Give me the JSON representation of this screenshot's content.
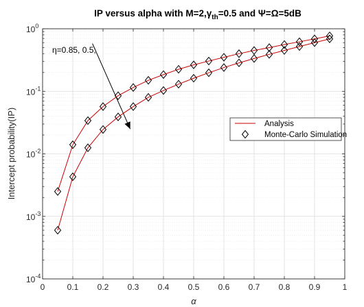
{
  "chart_data": {
    "type": "line",
    "title": {
      "prefix": "IP versus alpha with M=2,",
      "gamma": "γ",
      "gamma_sub": "th",
      "suffix": "=0.5 and Ψ=Ω=5dB"
    },
    "xlabel": "α",
    "ylabel": "Intercept probability(IP)",
    "xlim": [
      0,
      1
    ],
    "ylim": [
      0.0001,
      1
    ],
    "yscale": "log",
    "grid": true,
    "x_ticks": [
      "0",
      "0.1",
      "0.2",
      "0.3",
      "0.4",
      "0.5",
      "0.6",
      "0.7",
      "0.8",
      "0.9",
      "1"
    ],
    "x_tick_values": [
      0,
      0.1,
      0.2,
      0.3,
      0.4,
      0.5,
      0.6,
      0.7,
      0.8,
      0.9,
      1
    ],
    "y_ticks": [
      {
        "base": "10",
        "exp": "0",
        "value": 1
      },
      {
        "base": "10",
        "exp": "-1",
        "value": 0.1
      },
      {
        "base": "10",
        "exp": "-2",
        "value": 0.01
      },
      {
        "base": "10",
        "exp": "-3",
        "value": 0.001
      },
      {
        "base": "10",
        "exp": "-4",
        "value": 0.0001
      }
    ],
    "x": [
      0.05,
      0.1,
      0.15,
      0.2,
      0.25,
      0.3,
      0.35,
      0.4,
      0.45,
      0.5,
      0.55,
      0.6,
      0.65,
      0.7,
      0.75,
      0.8,
      0.85,
      0.9,
      0.95
    ],
    "series": [
      {
        "values": [
          0.0025,
          0.014,
          0.034,
          0.057,
          0.085,
          0.115,
          0.15,
          0.185,
          0.225,
          0.265,
          0.305,
          0.35,
          0.4,
          0.45,
          0.5,
          0.56,
          0.62,
          0.69,
          0.77
        ]
      },
      {
        "values": [
          0.0006,
          0.0043,
          0.0125,
          0.0245,
          0.039,
          0.057,
          0.08,
          0.103,
          0.13,
          0.162,
          0.198,
          0.24,
          0.285,
          0.335,
          0.39,
          0.45,
          0.52,
          0.6,
          0.69
        ]
      }
    ],
    "legend": {
      "position": "right",
      "entries": [
        {
          "label": "Analysis",
          "marker": "line",
          "color": "#cc0000"
        },
        {
          "label": "Monte-Carlo Simulation",
          "marker": "diamond",
          "color": "#000000"
        }
      ]
    },
    "annotation": {
      "text": "η=0.85, 0.5;",
      "arrow": {
        "from": [
          0.165,
          0.58
        ],
        "to": [
          0.29,
          0.025
        ]
      }
    },
    "colors": {
      "line": "#cc0000",
      "marker": "#000000",
      "axis": "#262626",
      "grid": "#dcdcdc"
    }
  }
}
